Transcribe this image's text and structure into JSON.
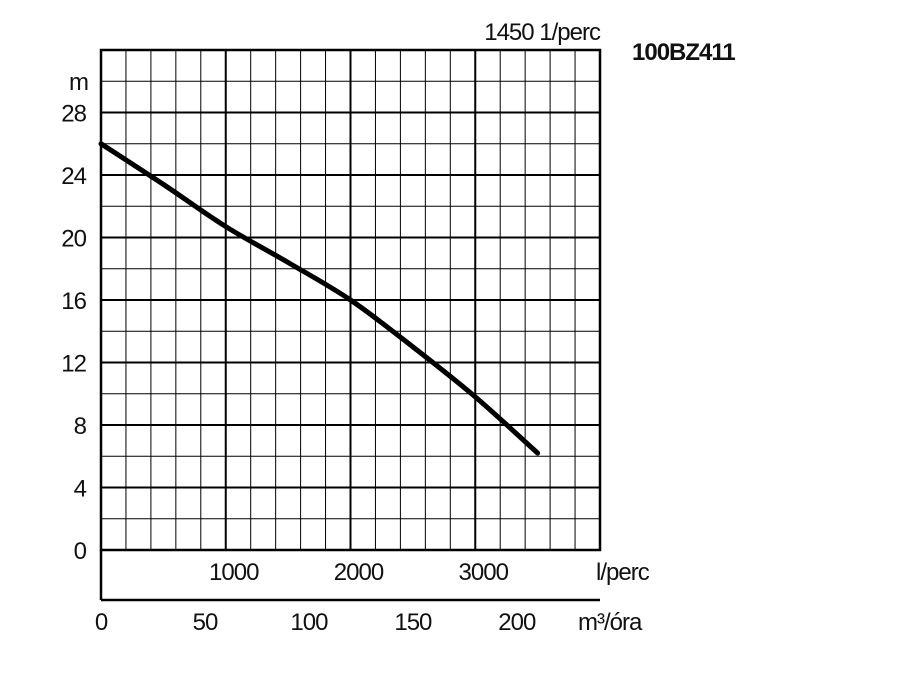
{
  "chart_data": {
    "type": "line",
    "title": "100BZ411",
    "speed_label": "1450 1/perc",
    "ylabel": "m",
    "xlabel_primary": "l/perc",
    "xlabel_secondary": "m³/óra",
    "ylim": [
      0,
      32
    ],
    "xlim": [
      0,
      4000
    ],
    "y_ticks": [
      0,
      4,
      8,
      12,
      16,
      20,
      24,
      28
    ],
    "x_ticks": [
      1000,
      2000,
      3000
    ],
    "x2_ticks": [
      0,
      50,
      100,
      150,
      200
    ],
    "x2_range_m3h": [
      0,
      240
    ],
    "grid": true,
    "series": [
      {
        "x": [
          0,
          500,
          1000,
          1500,
          2000,
          2500,
          3000,
          3500
        ],
        "y": [
          26.0,
          23.4,
          20.7,
          18.4,
          16.0,
          13.0,
          9.8,
          6.2
        ]
      }
    ]
  }
}
